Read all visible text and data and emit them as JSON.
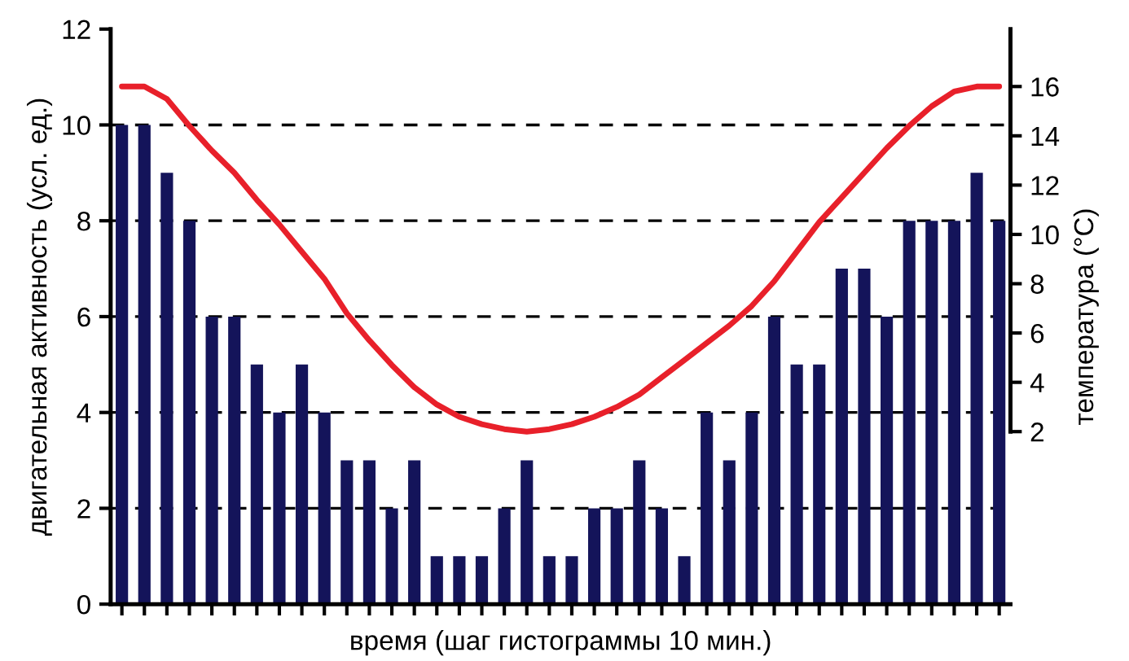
{
  "chart_data": {
    "type": "bar",
    "xlabel": "время (шаг гистограммы 10 мин.)",
    "ylabel": "двигательная активность (усл. ед.)",
    "y2label": "температура (°C)",
    "categories": [
      null,
      null,
      null,
      null,
      null,
      null,
      null,
      null,
      null,
      null,
      null,
      null,
      null,
      null,
      null,
      null,
      null,
      null,
      null,
      null,
      null,
      null,
      null,
      null,
      null,
      null,
      null,
      null,
      null,
      null,
      null,
      null,
      null,
      null,
      null,
      null,
      null,
      null,
      null,
      null
    ],
    "series": [
      {
        "color": "#14145a",
        "values": [
          10,
          10,
          9,
          8,
          6,
          6,
          5,
          4,
          5,
          4,
          3,
          3,
          2,
          3,
          1,
          1,
          1,
          2,
          3,
          1,
          1,
          2,
          2,
          3,
          2,
          1,
          4,
          3,
          4,
          6,
          5,
          5,
          7,
          7,
          6,
          8,
          8,
          8,
          9,
          8
        ]
      },
      {
        "type": "line",
        "axis": "y2",
        "color": "#e8202a",
        "values": [
          16.0,
          16.0,
          15.5,
          14.4,
          13.4,
          12.5,
          11.4,
          10.4,
          9.3,
          8.2,
          6.8,
          5.7,
          4.7,
          3.8,
          3.1,
          2.6,
          2.3,
          2.1,
          2.0,
          2.1,
          2.3,
          2.6,
          3.0,
          3.5,
          4.2,
          4.9,
          5.6,
          6.3,
          7.1,
          8.1,
          9.3,
          10.5,
          11.5,
          12.5,
          13.5,
          14.4,
          15.2,
          15.8,
          16.0,
          16.0
        ]
      }
    ],
    "ylim": [
      0,
      12
    ],
    "yticks": [
      0,
      2,
      4,
      6,
      8,
      10,
      12
    ],
    "y2lim": [
      -5,
      18.33
    ],
    "y2ticks": [
      2,
      4,
      6,
      8,
      10,
      12,
      14,
      16
    ],
    "grid": "y",
    "line_style": "solid",
    "marker": "none"
  }
}
